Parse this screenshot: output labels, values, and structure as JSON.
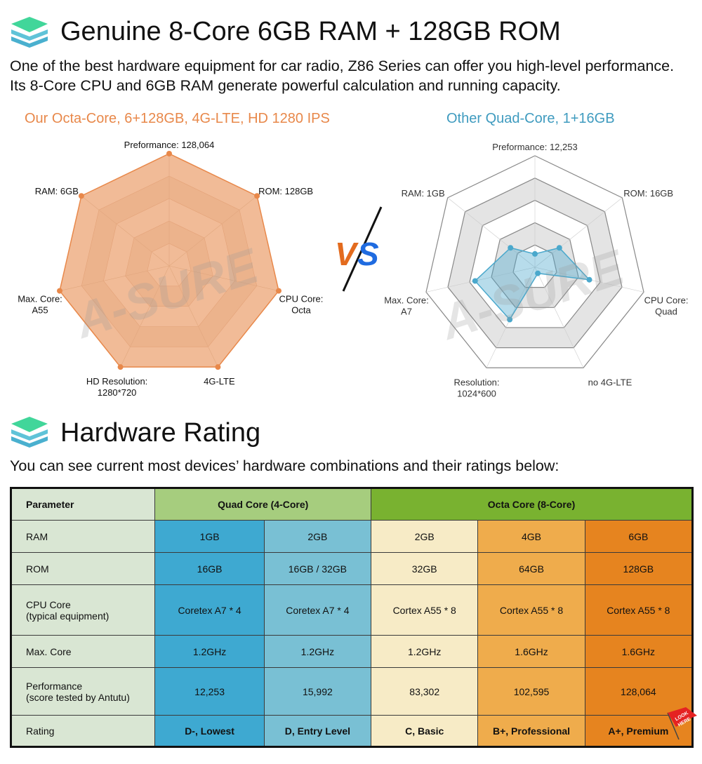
{
  "section1": {
    "title": "Genuine 8-Core 6GB RAM + 128GB ROM",
    "desc": [
      "One of the best hardware equipment for car radio, Z86 Series can offer you high-level performance.",
      "Its 8-Core CPU and 6GB RAM generate powerful calculation and running capacity."
    ]
  },
  "vs_label": "VS",
  "watermark": "A-SURE",
  "chart_data": [
    {
      "type": "radar",
      "title": "Our Octa-Core, 6+128GB, 4G-LTE, HD 1280 IPS",
      "color": "#e8884a",
      "axes": [
        [
          "Preformance: 128,064"
        ],
        [
          "ROM: 128GB"
        ],
        [
          "CPU Core:",
          "Octa"
        ],
        [
          "4G-LTE"
        ],
        [
          "HD Resolution:",
          "1280*720"
        ],
        [
          "Max. Core:",
          "A55"
        ],
        [
          "RAM: 6GB"
        ]
      ],
      "values": [
        1,
        1,
        1,
        1,
        1,
        1,
        1
      ],
      "rings": 5,
      "range": [
        0,
        1
      ]
    },
    {
      "type": "radar",
      "title": "Other Quad-Core, 1+16GB",
      "color": "#4aa8cc",
      "axes": [
        [
          "Preformance: 12,253"
        ],
        [
          "ROM: 16GB"
        ],
        [
          "CPU Core:",
          "Quad"
        ],
        [
          "no 4G-LTE"
        ],
        [
          "Resolution:",
          "1024*600"
        ],
        [
          "Max. Core:",
          "A7"
        ],
        [
          "RAM: 1GB"
        ]
      ],
      "values": [
        0.12,
        0.28,
        0.5,
        0.06,
        0.52,
        0.55,
        0.28
      ],
      "rings": 5,
      "range": [
        0,
        1
      ]
    }
  ],
  "section2": {
    "title": "Hardware  Rating",
    "desc": "You can see current most devices’ hardware combinations and their ratings below:"
  },
  "table": {
    "param_header": "Parameter",
    "quad_header": "Quad Core (4-Core)",
    "octa_header": "Octa Core (8-Core)",
    "rows": [
      {
        "label": "RAM",
        "cells": [
          "1GB",
          "2GB",
          "2GB",
          "4GB",
          "6GB"
        ]
      },
      {
        "label": "ROM",
        "cells": [
          "16GB",
          "16GB / 32GB",
          "32GB",
          "64GB",
          "128GB"
        ]
      },
      {
        "label": "CPU Core\n(typical equipment)",
        "cells": [
          "Coretex A7 * 4",
          "Coretex A7 * 4",
          "Cortex A55 * 8",
          "Cortex A55 * 8",
          "Cortex A55 * 8"
        ]
      },
      {
        "label": "Max. Core",
        "cells": [
          "1.2GHz",
          "1.2GHz",
          "1.2GHz",
          "1.6GHz",
          "1.6GHz"
        ]
      },
      {
        "label": "Performance\n(score tested by Antutu)",
        "cells": [
          "12,253",
          "15,992",
          "83,302",
          "102,595",
          "128,064"
        ]
      },
      {
        "label": "Rating",
        "cells": [
          "D-, Lowest",
          "D, Entry Level",
          "C, Basic",
          "B+, Professional",
          "A+, Premium"
        ]
      }
    ],
    "col_colors": [
      "#3ea9d1",
      "#79c0d4",
      "#f7ebc6",
      "#efac4c",
      "#e6841f"
    ],
    "quad_color": "#a6cd7e",
    "octa_color": "#79b230"
  },
  "flag_text": "LOOK HERE"
}
